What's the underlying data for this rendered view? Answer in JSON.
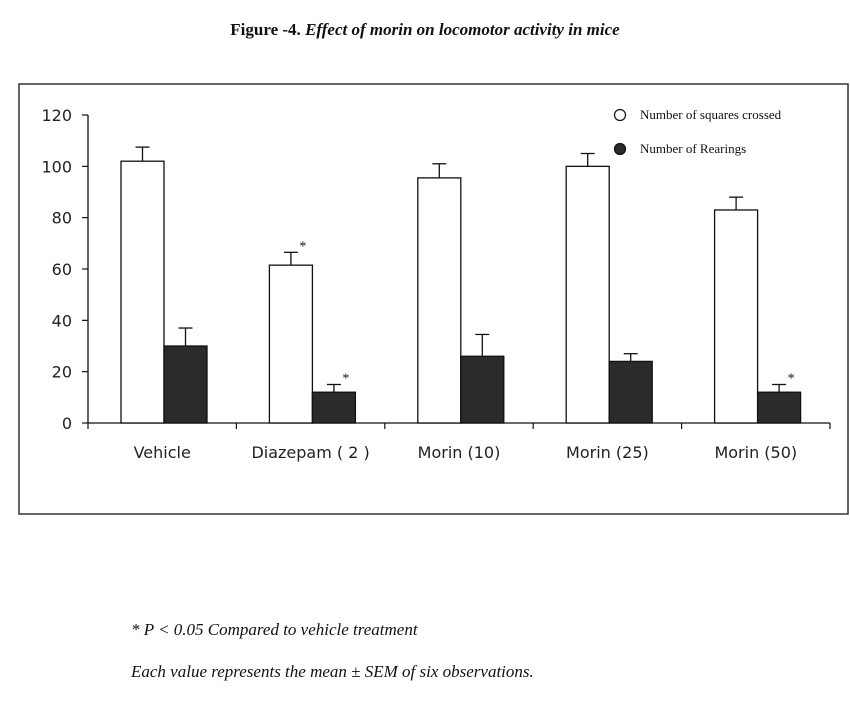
{
  "figure": {
    "title_prefix": "Figure -4.",
    "title_text": " Effect of morin on locomotor activity in mice"
  },
  "chart_data": {
    "type": "bar",
    "title": "",
    "xlabel": "",
    "ylabel": "",
    "categories": [
      "Vehicle",
      "Diazepam ( 2 )",
      "Morin (10)",
      "Morin (25)",
      "Morin (50)"
    ],
    "ylim": [
      0,
      120
    ],
    "yticks": [
      0,
      20,
      40,
      60,
      80,
      100,
      120
    ],
    "legend_position": "top-right",
    "grid": false,
    "series": [
      {
        "name": "Number of squares crossed",
        "values": [
          102,
          61.5,
          95.5,
          100,
          83
        ],
        "errors": [
          5.5,
          5,
          5.5,
          5,
          5
        ],
        "significant": [
          false,
          true,
          false,
          false,
          false
        ],
        "color": "#ffffff"
      },
      {
        "name": "Number of Rearings",
        "values": [
          30,
          12,
          26,
          24,
          12
        ],
        "errors": [
          7,
          3,
          8.5,
          3,
          3
        ],
        "significant": [
          false,
          true,
          false,
          false,
          true
        ],
        "color": "#2b2b2b"
      }
    ],
    "significance_marker": "*"
  },
  "footnotes": {
    "line1": "* P < 0.05 Compared to vehicle treatment",
    "line2": "Each value represents the mean ± SEM of six observations."
  }
}
